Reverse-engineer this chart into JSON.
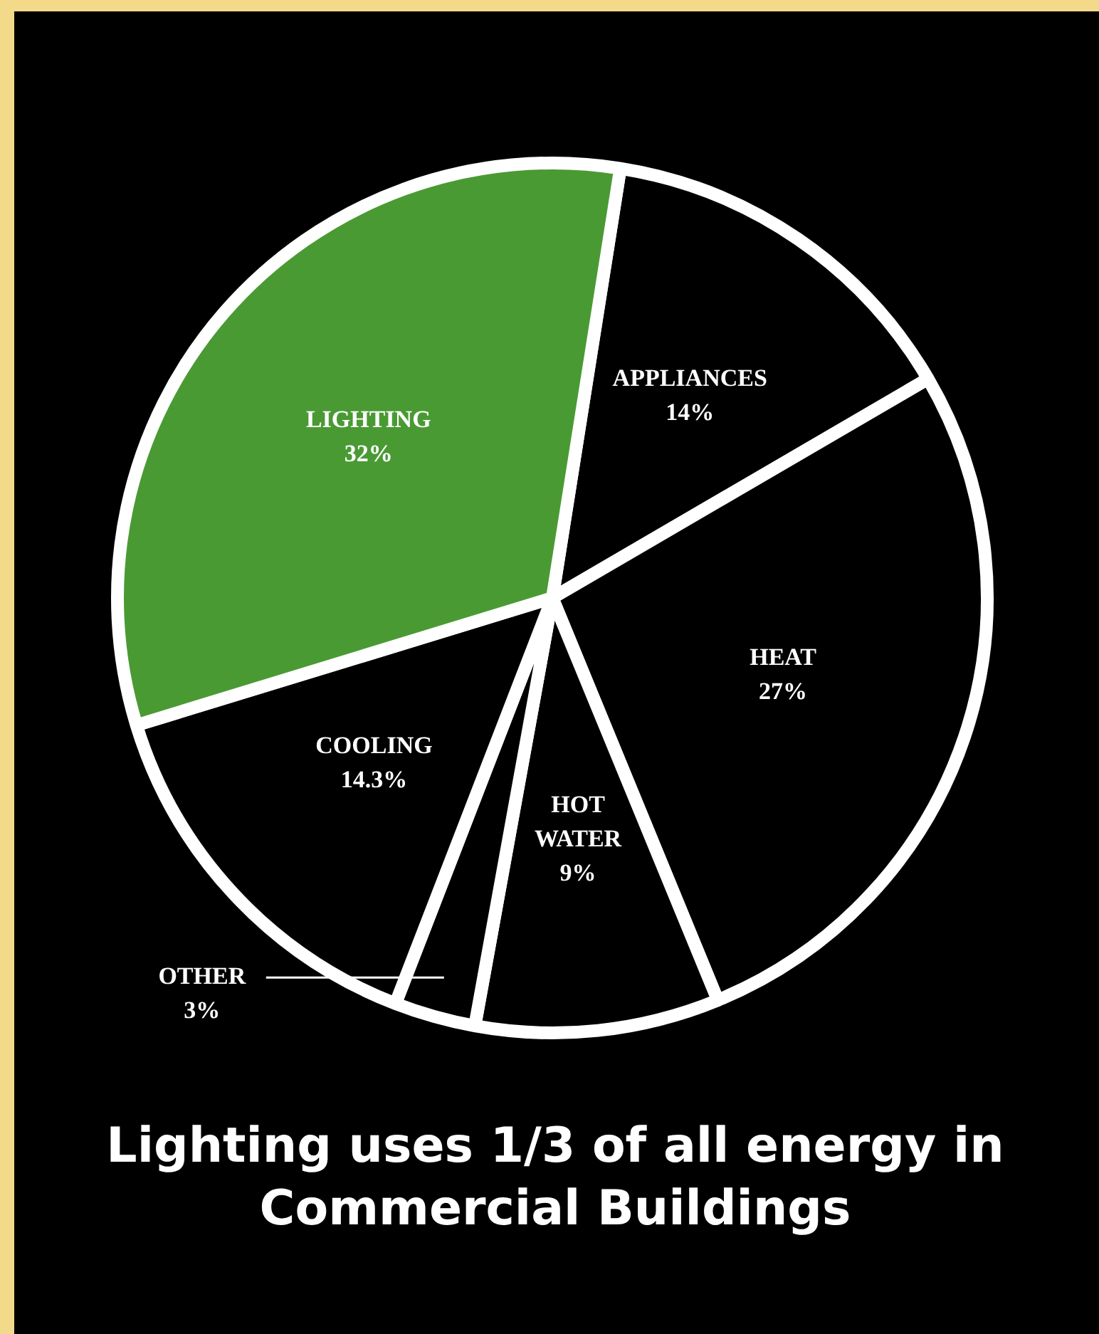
{
  "chart_data": {
    "type": "pie",
    "title": "Lighting uses 1/3 of all energy in Commercial Buildings",
    "categories": [
      "APPLIANCES",
      "HEAT",
      "HOT WATER",
      "OTHER",
      "COOLING",
      "LIGHTING"
    ],
    "values": [
      14,
      27,
      9,
      3,
      14.3,
      32
    ],
    "value_labels": [
      "14%",
      "27%",
      "9%",
      "3%",
      "14.3%",
      "32%"
    ],
    "colors": [
      "#000000",
      "#000000",
      "#000000",
      "#000000",
      "#000000",
      "#4a9a34"
    ],
    "legend": false
  }
}
